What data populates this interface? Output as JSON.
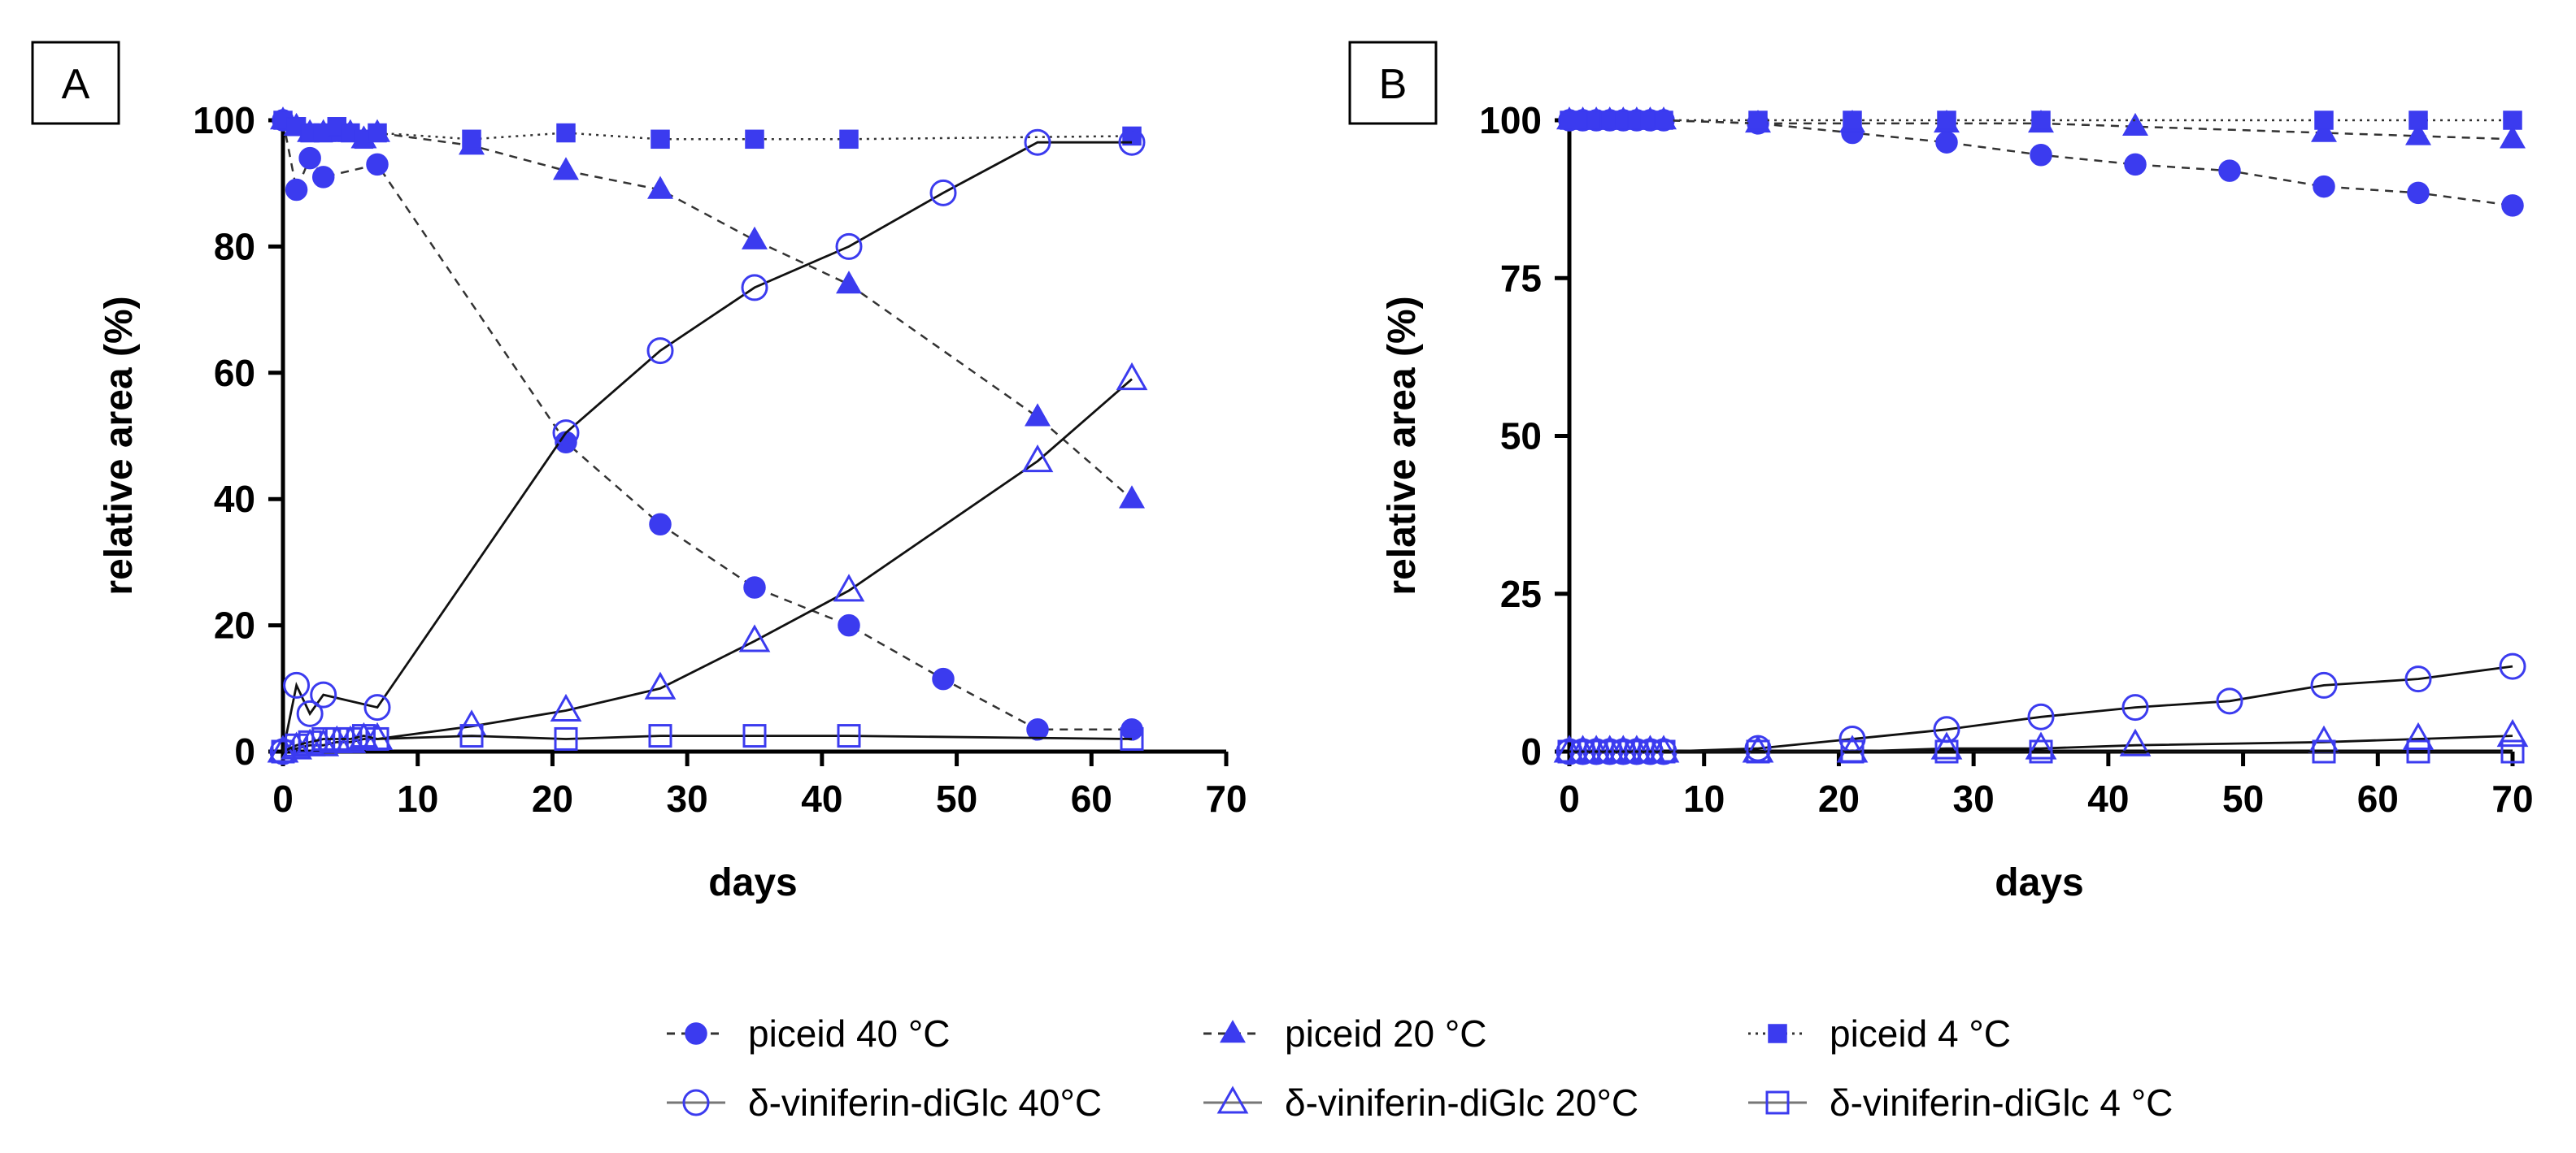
{
  "chart_data": [
    {
      "type": "line",
      "panel_label": "A",
      "xlabel": "days",
      "ylabel": "relative area (%)",
      "xlim": [
        0,
        70
      ],
      "ylim": [
        0,
        100
      ],
      "xticks": [
        0,
        10,
        20,
        30,
        40,
        50,
        60,
        70
      ],
      "yticks": [
        0,
        20,
        40,
        60,
        80,
        100
      ],
      "series": [
        {
          "name": "piceid 40 °C",
          "x": [
            0,
            1,
            2,
            3,
            7,
            21,
            28,
            35,
            42,
            49,
            56,
            63
          ],
          "y": [
            100,
            89,
            94,
            91,
            93,
            49,
            36,
            26,
            20,
            11.5,
            3.5,
            3.5
          ]
        },
        {
          "name": "piceid 20 °C",
          "x": [
            0,
            1,
            2,
            3,
            4,
            5,
            6,
            7,
            14,
            21,
            28,
            35,
            42,
            56,
            63
          ],
          "y": [
            100,
            99,
            98,
            98,
            98,
            98,
            97,
            98,
            96,
            92,
            89,
            81,
            74,
            53,
            40
          ]
        },
        {
          "name": "piceid 4 °C",
          "x": [
            0,
            1,
            2,
            3,
            4,
            5,
            6,
            7,
            14,
            21,
            28,
            35,
            42,
            63
          ],
          "y": [
            100,
            99,
            98,
            98,
            99,
            98,
            97,
            98,
            97,
            98,
            97,
            97,
            97,
            97.5
          ]
        },
        {
          "name": "δ-viniferin-diGlc 40°C",
          "x": [
            0,
            1,
            2,
            3,
            7,
            21,
            28,
            35,
            42,
            49,
            56,
            63
          ],
          "y": [
            0,
            10.5,
            6,
            9,
            7,
            50.5,
            63.5,
            73.5,
            80,
            88.5,
            96.5,
            96.5
          ]
        },
        {
          "name": "δ-viniferin-diGlc 20°C",
          "x": [
            0,
            1,
            2,
            3,
            4,
            5,
            6,
            7,
            14,
            21,
            28,
            35,
            42,
            56,
            63
          ],
          "y": [
            0,
            0.5,
            1,
            1,
            1.5,
            1.5,
            2,
            2,
            4,
            6.5,
            10,
            17.5,
            25.5,
            46,
            59
          ]
        },
        {
          "name": "δ-viniferin-diGlc 4 °C",
          "x": [
            0,
            1,
            2,
            3,
            4,
            5,
            6,
            7,
            14,
            21,
            28,
            35,
            42,
            63
          ],
          "y": [
            0,
            1,
            1.5,
            2,
            2,
            2,
            2.5,
            2,
            2.5,
            2,
            2.5,
            2.5,
            2.5,
            2
          ]
        }
      ]
    },
    {
      "type": "line",
      "panel_label": "B",
      "xlabel": "days",
      "ylabel": "relative area (%)",
      "xlim": [
        0,
        70
      ],
      "ylim": [
        0,
        100
      ],
      "xticks": [
        0,
        10,
        20,
        30,
        40,
        50,
        60,
        70
      ],
      "yticks": [
        0,
        25,
        50,
        75,
        100
      ],
      "series": [
        {
          "name": "piceid 40 °C",
          "x": [
            0,
            1,
            2,
            3,
            4,
            5,
            6,
            7,
            14,
            21,
            28,
            35,
            42,
            49,
            56,
            63,
            70
          ],
          "y": [
            100,
            100,
            100,
            100,
            100,
            100,
            100,
            100,
            99.5,
            98,
            96.5,
            94.5,
            93,
            92,
            89.5,
            88.5,
            86.5
          ]
        },
        {
          "name": "piceid 20 °C",
          "x": [
            0,
            1,
            2,
            3,
            4,
            5,
            6,
            7,
            14,
            21,
            28,
            35,
            42,
            56,
            63,
            70
          ],
          "y": [
            100,
            100,
            100,
            100,
            100,
            100,
            100,
            100,
            99.5,
            99.5,
            99.5,
            99.5,
            99,
            98,
            97.5,
            97
          ]
        },
        {
          "name": "piceid 4 °C",
          "x": [
            0,
            1,
            2,
            3,
            4,
            5,
            6,
            7,
            14,
            21,
            28,
            35,
            56,
            63,
            70
          ],
          "y": [
            100,
            100,
            100,
            100,
            100,
            100,
            100,
            100,
            100,
            100,
            100,
            100,
            100,
            100,
            100
          ]
        },
        {
          "name": "δ-viniferin-diGlc 40°C",
          "x": [
            0,
            1,
            2,
            3,
            4,
            5,
            6,
            7,
            14,
            21,
            28,
            35,
            42,
            49,
            56,
            63,
            70
          ],
          "y": [
            0,
            0,
            0,
            0,
            0,
            0,
            0,
            0,
            0.5,
            2,
            3.5,
            5.5,
            7,
            8,
            10.5,
            11.5,
            13.5
          ]
        },
        {
          "name": "δ-viniferin-diGlc 20°C",
          "x": [
            0,
            1,
            2,
            3,
            4,
            5,
            6,
            7,
            14,
            21,
            28,
            35,
            42,
            56,
            63,
            70
          ],
          "y": [
            0,
            0,
            0,
            0,
            0,
            0,
            0,
            0,
            0,
            0,
            0.5,
            0.5,
            1,
            1.5,
            2,
            2.5
          ]
        },
        {
          "name": "δ-viniferin-diGlc 4 °C",
          "x": [
            0,
            1,
            2,
            3,
            4,
            5,
            6,
            7,
            14,
            21,
            28,
            35,
            56,
            63,
            70
          ],
          "y": [
            0,
            0,
            0,
            0,
            0,
            0,
            0,
            0,
            0,
            0,
            0,
            0,
            0,
            0,
            0
          ]
        }
      ]
    }
  ],
  "legend": [
    {
      "label": "piceid 40 °C",
      "line": "dashed",
      "marker": "circle",
      "filled": true
    },
    {
      "label": "piceid 20 °C",
      "line": "dashed",
      "marker": "triangle",
      "filled": true
    },
    {
      "label": "piceid 4 °C",
      "line": "dotted",
      "marker": "square",
      "filled": true
    },
    {
      "label": "δ-viniferin-diGlc 40°C",
      "line": "solid",
      "marker": "circle",
      "filled": false
    },
    {
      "label": "δ-viniferin-diGlc 20°C",
      "line": "solid",
      "marker": "triangle",
      "filled": false
    },
    {
      "label": "δ-viniferin-diGlc 4 °C",
      "line": "solid",
      "marker": "square",
      "filled": false
    }
  ],
  "colors": {
    "marker": "#3b3bef",
    "axis": "#000000"
  }
}
